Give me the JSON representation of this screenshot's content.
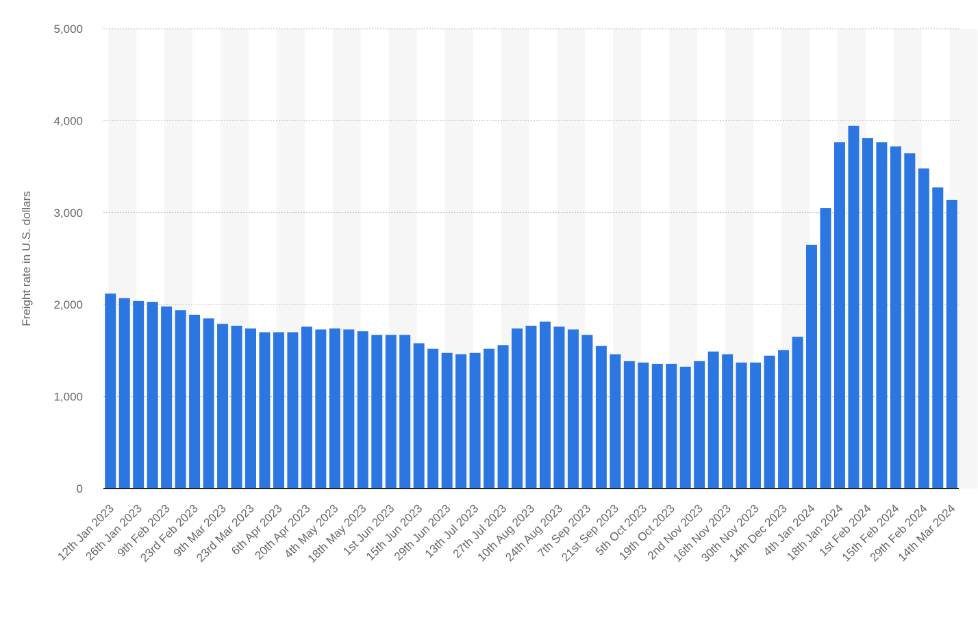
{
  "chart_data": {
    "type": "bar",
    "y_label": "Freight rate in U.S. dollars",
    "categories": [
      "12th Jan 2023",
      null,
      "26th Jan 2023",
      null,
      "9th Feb 2023",
      null,
      "23rd Feb 2023",
      null,
      "9th Mar 2023",
      null,
      "23rd Mar 2023",
      null,
      "6th Apr 2023",
      null,
      "20th Apr 2023",
      null,
      "4th May 2023",
      null,
      "18th May 2023",
      null,
      "1st Jun 2023",
      null,
      "15th Jun 2023",
      null,
      "29th Jun 2023",
      null,
      "13th Jul 2023",
      null,
      "27th Jul 2023",
      null,
      "10th Aug 2023",
      null,
      "24th Aug 2023",
      null,
      "7th Sep 2023",
      null,
      "21st Sep 2023",
      null,
      "5th Oct 2023",
      null,
      "19th Oct 2023",
      null,
      "2nd Nov 2023",
      null,
      "16th Nov 2023",
      null,
      "30th Nov 2023",
      null,
      "14th Dec 2023",
      null,
      "4th Jan 2024",
      null,
      "18th Jan 2024",
      null,
      "1st Feb 2024",
      null,
      "15th Feb 2024",
      null,
      "29th Feb 2024",
      null,
      "14th Mar 2024"
    ],
    "values": [
      2120,
      2070,
      2040,
      2030,
      1980,
      1940,
      1890,
      1850,
      1790,
      1770,
      1740,
      1700,
      1700,
      1700,
      1760,
      1730,
      1740,
      1730,
      1710,
      1670,
      1670,
      1670,
      1580,
      1520,
      1475,
      1460,
      1475,
      1520,
      1560,
      1740,
      1770,
      1815,
      1760,
      1730,
      1670,
      1550,
      1460,
      1385,
      1370,
      1355,
      1355,
      1325,
      1385,
      1490,
      1460,
      1370,
      1370,
      1445,
      1505,
      1650,
      2650,
      3050,
      3765,
      3945,
      3810,
      3765,
      3720,
      3645,
      3480,
      3275,
      3140
    ],
    "color": "#2b76e0",
    "ylim": [
      0,
      5000
    ],
    "yticks": [
      0,
      {
        "value": 1000,
        "label": "1,000"
      },
      {
        "value": 2000,
        "label": "2,000"
      },
      {
        "value": 3000,
        "label": "3,000"
      },
      {
        "value": 4000,
        "label": "4,000"
      },
      {
        "value": 5000,
        "label": "5,000"
      }
    ],
    "grid": true
  }
}
